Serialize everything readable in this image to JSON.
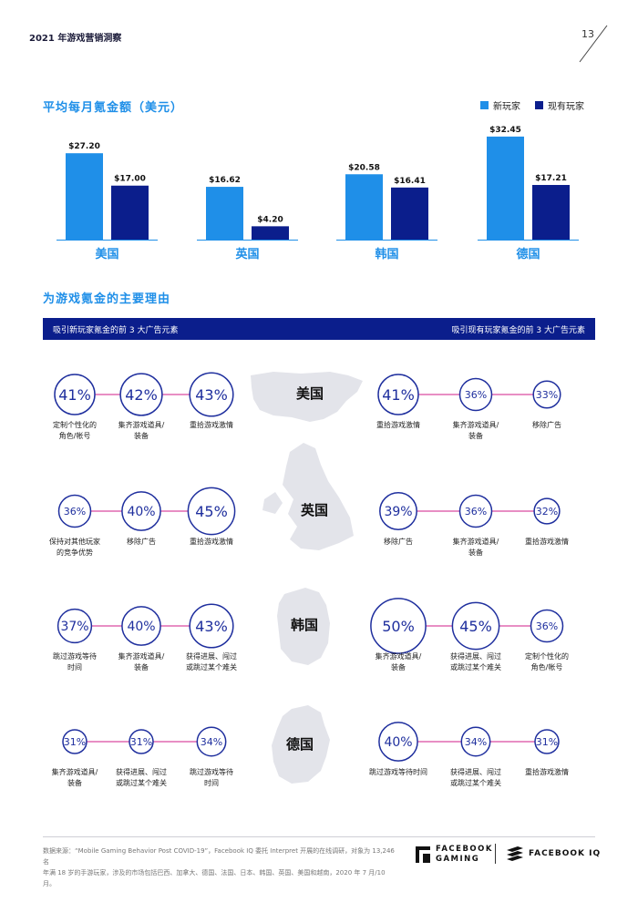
{
  "header": {
    "report_title": "2021 年游戏营销洞察",
    "page_number": "13"
  },
  "colors": {
    "new_player": "#1f8fe8",
    "existing_player": "#0b1e8c",
    "ring": "#1f2f9e",
    "connector": "#d94aa0",
    "map": "#e3e4ea"
  },
  "chart_data": [
    {
      "type": "bar",
      "title": "平均每月氪金额（美元）",
      "categories": [
        "美国",
        "英国",
        "韩国",
        "德国"
      ],
      "series": [
        {
          "name": "新玩家",
          "values": [
            27.2,
            16.62,
            20.58,
            32.45
          ],
          "labels": [
            "$27.20",
            "$16.62",
            "$20.58",
            "$32.45"
          ]
        },
        {
          "name": "现有玩家",
          "values": [
            17.0,
            4.2,
            16.41,
            17.21
          ],
          "labels": [
            "$17.00",
            "$4.20",
            "$16.41",
            "$17.21"
          ]
        }
      ],
      "ylim": [
        0,
        35
      ],
      "legend": "top-right"
    },
    {
      "type": "table",
      "title": "为游戏氪金的主要理由",
      "left_header": "吸引新玩家氪金的前 3 大广告元素",
      "right_header": "吸引现有玩家氪金的前 3 大广告元素",
      "rows": [
        {
          "country": "美国",
          "new_players": [
            {
              "pct": 41,
              "label": "41%",
              "reason": [
                "定制个性化的",
                "角色/帐号"
              ]
            },
            {
              "pct": 42,
              "label": "42%",
              "reason": [
                "集齐游戏道具/",
                "装备"
              ]
            },
            {
              "pct": 43,
              "label": "43%",
              "reason": [
                "重拾游戏激情"
              ]
            }
          ],
          "existing_players": [
            {
              "pct": 41,
              "label": "41%",
              "reason": [
                "重拾游戏激情"
              ]
            },
            {
              "pct": 36,
              "label": "36%",
              "reason": [
                "集齐游戏道具/",
                "装备"
              ]
            },
            {
              "pct": 33,
              "label": "33%",
              "reason": [
                "移除广告"
              ]
            }
          ]
        },
        {
          "country": "英国",
          "new_players": [
            {
              "pct": 36,
              "label": "36%",
              "reason": [
                "保持对其他玩家",
                "的竞争优势"
              ]
            },
            {
              "pct": 40,
              "label": "40%",
              "reason": [
                "移除广告"
              ]
            },
            {
              "pct": 45,
              "label": "45%",
              "reason": [
                "重拾游戏激情"
              ]
            }
          ],
          "existing_players": [
            {
              "pct": 39,
              "label": "39%",
              "reason": [
                "移除广告"
              ]
            },
            {
              "pct": 36,
              "label": "36%",
              "reason": [
                "集齐游戏道具/",
                "装备"
              ]
            },
            {
              "pct": 32,
              "label": "32%",
              "reason": [
                "重拾游戏激情"
              ]
            }
          ]
        },
        {
          "country": "韩国",
          "new_players": [
            {
              "pct": 37,
              "label": "37%",
              "reason": [
                "跳过游戏等待",
                "时间"
              ]
            },
            {
              "pct": 40,
              "label": "40%",
              "reason": [
                "集齐游戏道具/",
                "装备"
              ]
            },
            {
              "pct": 43,
              "label": "43%",
              "reason": [
                "获得进展、闯过",
                "或跳过某个难关"
              ]
            }
          ],
          "existing_players": [
            {
              "pct": 50,
              "label": "50%",
              "reason": [
                "集齐游戏道具/",
                "装备"
              ]
            },
            {
              "pct": 45,
              "label": "45%",
              "reason": [
                "获得进展、闯过",
                "或跳过某个难关"
              ]
            },
            {
              "pct": 36,
              "label": "36%",
              "reason": [
                "定制个性化的",
                "角色/帐号"
              ]
            }
          ]
        },
        {
          "country": "德国",
          "new_players": [
            {
              "pct": 31,
              "label": "31%",
              "reason": [
                "集齐游戏道具/",
                "装备"
              ]
            },
            {
              "pct": 31,
              "label": "31%",
              "reason": [
                "获得进展、闯过",
                "或跳过某个难关"
              ]
            },
            {
              "pct": 34,
              "label": "34%",
              "reason": [
                "跳过游戏等待",
                "时间"
              ]
            }
          ],
          "existing_players": [
            {
              "pct": 40,
              "label": "40%",
              "reason": [
                "跳过游戏等待时间"
              ]
            },
            {
              "pct": 34,
              "label": "34%",
              "reason": [
                "获得进展、闯过",
                "或跳过某个难关"
              ]
            },
            {
              "pct": 31,
              "label": "31%",
              "reason": [
                "重拾游戏激情"
              ]
            }
          ]
        }
      ]
    }
  ],
  "footer": {
    "note_line1": "数据来源：“Mobile Gaming Behavior Post COVID-19”，Facebook IQ 委托 Interpret 开展的在线调研，对象为 13,246 名",
    "note_line2": "年满 18 岁的手游玩家，涉及的市场包括巴西、加拿大、德国、法国、日本、韩国、英国、美国和越南，2020 年 7 月/10 月。",
    "brand_gaming_line1": "FACEBOOK",
    "brand_gaming_line2": "GAMING",
    "brand_iq": "FACEBOOK IQ"
  }
}
